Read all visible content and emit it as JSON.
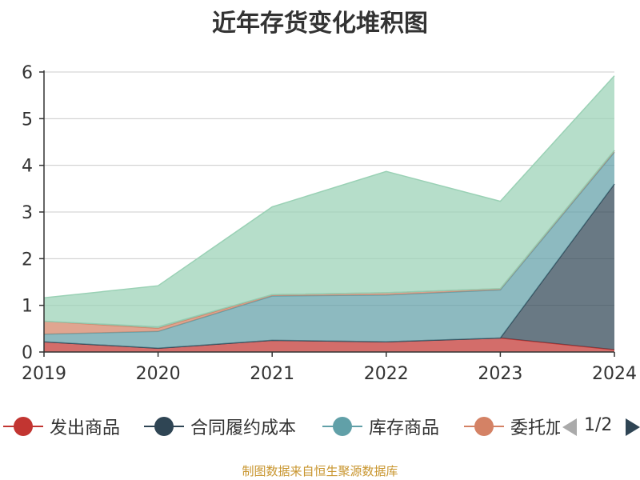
{
  "source_note": "制图数据来自恒生聚源数据库",
  "pager": {
    "text": "1/2"
  },
  "chart_data": {
    "type": "area",
    "stacked": true,
    "title": "近年存货变化堆积图",
    "x": [
      "2019",
      "2020",
      "2021",
      "2022",
      "2023",
      "2024"
    ],
    "ylim": [
      0,
      6
    ],
    "yticks": [
      "0",
      "1",
      "2",
      "3",
      "4",
      "5",
      "6"
    ],
    "grid": true,
    "legend_position": "bottom",
    "series": [
      {
        "name": "发出商品",
        "color": "#c23531",
        "values": [
          0.22,
          0.08,
          0.25,
          0.22,
          0.3,
          0.05
        ]
      },
      {
        "name": "合同履约成本",
        "color": "#2f4554",
        "values": [
          0,
          0,
          0,
          0,
          0,
          3.55
        ]
      },
      {
        "name": "库存商品",
        "color": "#61a0a8",
        "values": [
          0.16,
          0.36,
          0.95,
          1.0,
          1.03,
          0.68
        ]
      },
      {
        "name": "委托加工物资",
        "color": "#d48265",
        "values": [
          0.28,
          0.07,
          0.03,
          0.05,
          0.03,
          0.04
        ]
      },
      {
        "name": "",
        "color": "#91c7ae",
        "values": [
          0,
          0.03,
          0,
          0,
          0,
          0
        ]
      },
      {
        "name": "",
        "color": "#9ad1b5",
        "values": [
          0.5,
          0.88,
          1.88,
          2.6,
          1.87,
          1.6
        ]
      }
    ]
  }
}
